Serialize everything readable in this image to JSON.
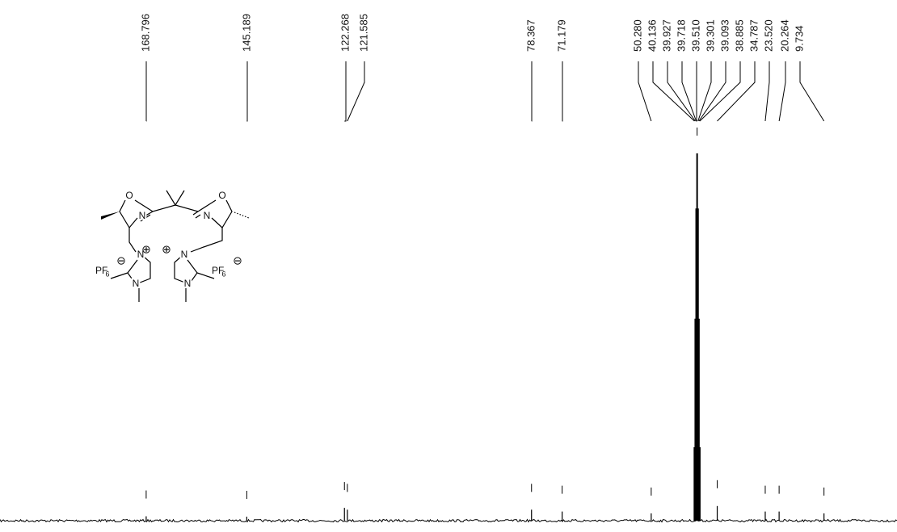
{
  "chart_data": {
    "type": "nmr",
    "xlim": [
      203.1,
      -7.4
    ],
    "ylim": [
      0,
      100
    ],
    "x": [
      168.796,
      145.189,
      122.268,
      121.585,
      78.367,
      71.179,
      {
        "value": 50.28,
        "label": "50.280"
      },
      40.136,
      39.927,
      39.718,
      {
        "value": 39.51,
        "label": "39.510"
      },
      39.301,
      39.093,
      38.885,
      34.787,
      {
        "value": 23.52,
        "label": "23.520"
      },
      20.264,
      9.734
    ],
    "values": [
      1.2,
      1.1,
      3.5,
      3,
      3,
      2.5,
      2,
      20,
      55,
      85,
      100,
      85,
      55,
      20,
      4,
      2.5,
      2.5,
      2
    ],
    "structure": {
      "labels": [
        "O",
        "N",
        "O",
        "N",
        "N",
        "N",
        "N",
        "N",
        "PF",
        "6",
        "PF",
        "6",
        "⊕",
        "⊕",
        "⊖",
        "⊖"
      ]
    }
  }
}
